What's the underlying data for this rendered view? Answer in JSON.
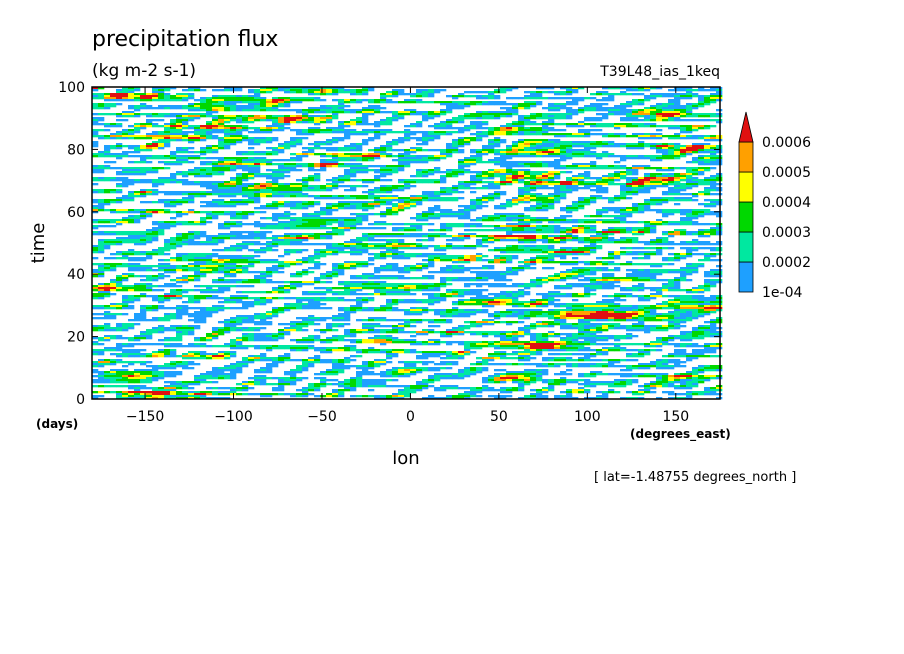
{
  "chart_data": {
    "type": "heatmap",
    "title": "precipitation flux",
    "units": "(kg m-2 s-1)",
    "experiment": "T39L48_ias_1keq",
    "xlabel": "lon",
    "xunits": "(degrees_east)",
    "ylabel": "time",
    "yunits": "(days)",
    "annotation": "[ lat=-1.48755 degrees_north ]",
    "xlim": [
      -180,
      175
    ],
    "ylim": [
      0,
      100
    ],
    "xticks": [
      -150,
      -100,
      -50,
      0,
      50,
      100,
      150
    ],
    "yticks": [
      0,
      20,
      40,
      60,
      80,
      100
    ],
    "levels": [
      0.0001,
      0.0002,
      0.0003,
      0.0004,
      0.0005,
      0.0006
    ],
    "level_labels": [
      "1e-04",
      "0.0002",
      "0.0003",
      "0.0004",
      "0.0005",
      "0.0006"
    ],
    "colors": [
      "#1ea0ff",
      "#00e8a0",
      "#00d800",
      "#ffff00",
      "#ffa000",
      "#e01010"
    ],
    "legend_placement": "right",
    "grid": false
  }
}
